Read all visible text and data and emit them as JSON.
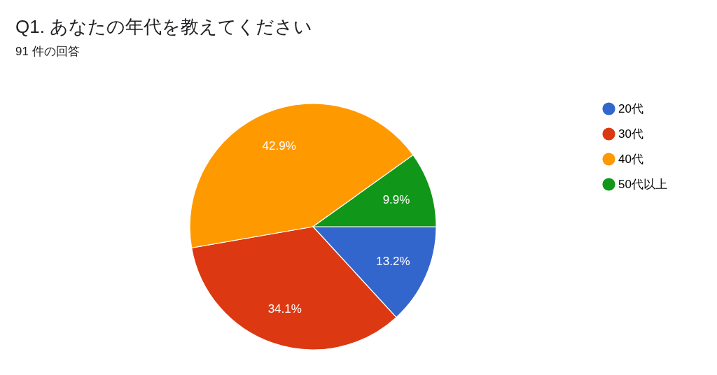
{
  "chart_data": {
    "type": "pie",
    "title": "Q1. あなたの年代を教えてください",
    "subtitle": "91 件の回答",
    "categories": [
      "20代",
      "30代",
      "40代",
      "50代以上"
    ],
    "values": [
      13.2,
      34.1,
      42.9,
      9.9
    ],
    "colors": [
      "#3366cc",
      "#dc3912",
      "#ff9900",
      "#109618"
    ],
    "value_labels": [
      "13.2%",
      "34.1%",
      "42.9%",
      "9.9%"
    ],
    "legend": "right"
  }
}
